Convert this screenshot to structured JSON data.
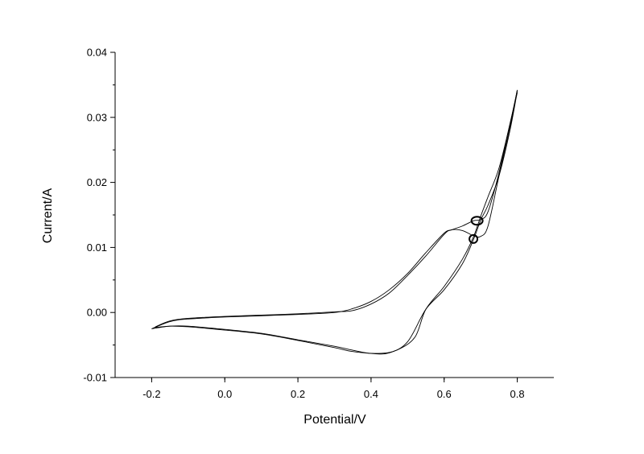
{
  "chart_data": {
    "type": "line",
    "title": "",
    "xlabel": "Potential/V",
    "ylabel": "Current/A",
    "xlim": [
      -0.3,
      0.9
    ],
    "ylim": [
      -0.01,
      0.04
    ],
    "x_ticks": [
      -0.2,
      0.0,
      0.2,
      0.4,
      0.6,
      0.8
    ],
    "x_tick_labels": [
      "-0.2",
      "0.0",
      "0.2",
      "0.4",
      "0.6",
      "0.8"
    ],
    "y_ticks": [
      -0.01,
      0.0,
      0.01,
      0.02,
      0.03,
      0.04
    ],
    "y_tick_labels": [
      "-0.01",
      "0.00",
      "0.01",
      "0.02",
      "0.03",
      "0.04"
    ],
    "grid": false,
    "line_color": "#000000",
    "series": [
      {
        "x": [
          -0.2,
          -0.15,
          -0.1,
          0.0,
          0.1,
          0.2,
          0.3,
          0.35,
          0.4,
          0.45,
          0.5,
          0.55,
          0.6,
          0.62,
          0.65,
          0.68,
          0.7,
          0.72,
          0.75,
          0.78,
          0.8
        ],
        "y": [
          -0.0025,
          -0.0014,
          -0.001,
          -0.0007,
          -0.0005,
          -0.0003,
          0.0,
          0.0006,
          0.0017,
          0.0035,
          0.006,
          0.0092,
          0.0122,
          0.0127,
          0.0133,
          0.0141,
          0.0143,
          0.0155,
          0.0215,
          0.029,
          0.0338
        ]
      },
      {
        "x": [
          -0.19,
          -0.15,
          -0.1,
          0.0,
          0.1,
          0.2,
          0.3,
          0.35,
          0.4,
          0.45,
          0.5,
          0.55,
          0.6,
          0.62,
          0.65,
          0.68,
          0.7,
          0.72,
          0.75,
          0.78,
          0.8
        ],
        "y": [
          -0.0022,
          -0.0013,
          -0.0009,
          -0.0006,
          -0.0004,
          -0.0002,
          0.0001,
          0.0003,
          0.0013,
          0.003,
          0.0057,
          0.0087,
          0.012,
          0.0127,
          0.0126,
          0.0118,
          0.0117,
          0.0133,
          0.021,
          0.0285,
          0.0342
        ]
      },
      {
        "x": [
          0.8,
          0.78,
          0.75,
          0.72,
          0.7,
          0.68,
          0.65,
          0.6,
          0.55,
          0.5,
          0.45,
          0.4,
          0.35,
          0.3,
          0.2,
          0.1,
          0.0,
          -0.1,
          -0.15,
          -0.2
        ],
        "y": [
          0.034,
          0.028,
          0.021,
          0.0165,
          0.0142,
          0.0112,
          0.0075,
          0.0035,
          0.0005,
          -0.0045,
          -0.0062,
          -0.0063,
          -0.0058,
          -0.0052,
          -0.0042,
          -0.0032,
          -0.0026,
          -0.0021,
          -0.0021,
          -0.0025
        ]
      },
      {
        "x": [
          0.8,
          0.78,
          0.75,
          0.72,
          0.7,
          0.68,
          0.65,
          0.6,
          0.55,
          0.52,
          0.47,
          0.42,
          0.35,
          0.3,
          0.2,
          0.1,
          0.0,
          -0.1,
          -0.15,
          -0.19
        ],
        "y": [
          0.0342,
          0.029,
          0.0222,
          0.0178,
          0.0148,
          0.0116,
          0.0082,
          0.004,
          0.0005,
          -0.0038,
          -0.0058,
          -0.0063,
          -0.006,
          -0.0054,
          -0.0043,
          -0.0033,
          -0.0027,
          -0.0022,
          -0.0021,
          -0.0023
        ]
      }
    ],
    "annotations": [
      {
        "type": "ellipse",
        "x": 0.69,
        "y": 0.0141
      },
      {
        "type": "ellipse",
        "x": 0.68,
        "y": 0.0113
      }
    ]
  }
}
